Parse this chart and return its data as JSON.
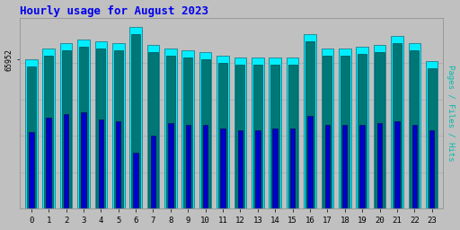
{
  "title": "Hourly usage for August 2023",
  "ylabel_right": "Pages / Files / Hits",
  "hours": [
    0,
    1,
    2,
    3,
    4,
    5,
    6,
    7,
    8,
    9,
    10,
    11,
    12,
    13,
    14,
    15,
    16,
    17,
    18,
    19,
    20,
    21,
    22,
    23
  ],
  "hits": [
    82,
    88,
    91,
    93,
    92,
    91,
    100,
    90,
    88,
    87,
    86,
    84,
    83,
    83,
    83,
    83,
    96,
    88,
    88,
    89,
    90,
    95,
    91,
    81
  ],
  "files": [
    78,
    84,
    87,
    89,
    88,
    87,
    96,
    86,
    84,
    83,
    82,
    80,
    79,
    79,
    79,
    79,
    92,
    84,
    84,
    85,
    86,
    91,
    87,
    77
  ],
  "pages": [
    42,
    50,
    52,
    53,
    49,
    48,
    31,
    40,
    47,
    46,
    46,
    44,
    43,
    43,
    44,
    44,
    51,
    46,
    46,
    46,
    47,
    48,
    46,
    43
  ],
  "ytick_label": "65952",
  "color_hits": "#00EEFF",
  "color_files": "#007777",
  "color_pages": "#0000CC",
  "background_color": "#C0C0C0",
  "title_color": "#0000EE",
  "ylabel_color": "#00BBAA",
  "ymax": 105,
  "ymin": 0
}
